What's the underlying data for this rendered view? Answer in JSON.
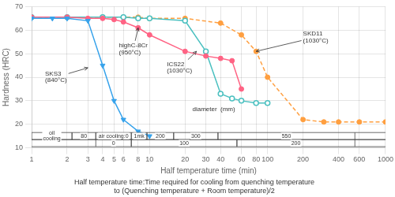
{
  "chart_data": {
    "type": "line",
    "log": "x",
    "xlabel": "Half temperature time (min)",
    "ylabel": "Hardness (HRC)",
    "xlim": [
      1.0,
      1000.0
    ],
    "ylim": [
      10,
      70
    ],
    "xticks": [
      1,
      2,
      3,
      4,
      5,
      6,
      8,
      10,
      20,
      30,
      40,
      60,
      80,
      100,
      200,
      400,
      600,
      1000
    ],
    "yticks": [
      10,
      20,
      30,
      40,
      50,
      60,
      70
    ],
    "grid": true,
    "footnote": "Half temperature time:Time required for cooling from quenching temperature\nto (Quenching temperature + Room temperature)/2",
    "series": [
      {
        "x": [
          1.0,
          1.5,
          2.0,
          3.0,
          4.0,
          5.0,
          6.0,
          8.0,
          10.0
        ],
        "values": [
          65.0,
          65.0,
          65.0,
          64.0,
          45.0,
          30.0,
          22.0,
          17.0,
          15.0
        ],
        "marker": "triangle-down",
        "line_style": "solid"
      },
      {
        "x": [
          1.0,
          2.0,
          3.0,
          4.0,
          5.0,
          6.0,
          8.0,
          10.0,
          20.0,
          30.0,
          40.0,
          50.0,
          60.0
        ],
        "values": [
          65.5,
          65.5,
          65.0,
          65.0,
          64.5,
          63.5,
          61.0,
          58.0,
          51.0,
          49.0,
          48.0,
          47.0,
          35.0
        ],
        "marker": "circle",
        "line_style": "solid"
      },
      {
        "x": [
          1.0,
          2.0,
          4.0,
          6.0,
          8.0,
          10.0,
          20.0,
          30.0,
          40.0,
          50.0,
          60.0,
          80.0,
          100.0
        ],
        "values": [
          65.5,
          65.5,
          65.5,
          65.5,
          65.0,
          65.0,
          64.0,
          51.0,
          33.0,
          31.0,
          30.0,
          29.0,
          29.0
        ],
        "marker": "open-circle",
        "line_style": "solid"
      },
      {
        "x": [
          1.0,
          2.0,
          4.0,
          6.0,
          8.0,
          10.0,
          20.0,
          40.0,
          60.0,
          80.0,
          100.0,
          200.0,
          300.0,
          400.0,
          600.0,
          1000.0
        ],
        "values": [
          65.5,
          65.5,
          65.5,
          65.5,
          65.5,
          65.0,
          65.0,
          63.0,
          58.0,
          51.0,
          40.0,
          22.0,
          21.0,
          21.0,
          21.0,
          21.0
        ],
        "marker": "circle",
        "line_style": "dashed"
      }
    ],
    "annotations": [
      {
        "text": "SKS3\n(840°C)",
        "xy": [
          3.0,
          44.0
        ],
        "xytext": [
          1.3,
          40.0
        ]
      },
      {
        "text": "highC-8Cr\n(950°C)",
        "xy": [
          8.0,
          61.0
        ],
        "xytext": [
          5.5,
          52.0
        ]
      },
      {
        "text": "ICS22\n(1030°C)",
        "xy": [
          25.0,
          51.0
        ],
        "xytext": [
          14.0,
          44.0
        ]
      },
      {
        "text": "SKD11\n(1030°C)",
        "xy": [
          80.0,
          51.0
        ],
        "xytext": [
          200.0,
          57.0
        ]
      }
    ],
    "texts": [
      {
        "text": "diameter  (mm)",
        "x": 35.0,
        "y": 26.5
      }
    ],
    "bands": [
      {
        "ylim": [
          13.5,
          16.5
        ],
        "segments": [
          {
            "x1": 1.0,
            "x2": 2.2,
            "label": "oil\ncooling"
          },
          {
            "x1": 2.2,
            "x2": 3.5,
            "label": "80"
          },
          {
            "x1": 3.5,
            "x2": 7.0,
            "label": "air cooling:0"
          },
          {
            "x1": 7.0,
            "x2": 9.5,
            "label": "1mk"
          },
          {
            "x1": 9.5,
            "x2": 16.0,
            "label": "200"
          },
          {
            "x1": 16.0,
            "x2": 38.0,
            "label": "300"
          },
          {
            "x1": 38.0,
            "x2": 550.0,
            "label": "550"
          }
        ]
      },
      {
        "ylim": [
          10.5,
          13.5
        ],
        "segments": [
          {
            "x1": 3.5,
            "x2": 7.0,
            "label": "0"
          },
          {
            "x1": 7.0,
            "x2": 55.0,
            "label": "100"
          },
          {
            "x1": 55.0,
            "x2": 550.0,
            "label": "200"
          }
        ]
      }
    ]
  }
}
